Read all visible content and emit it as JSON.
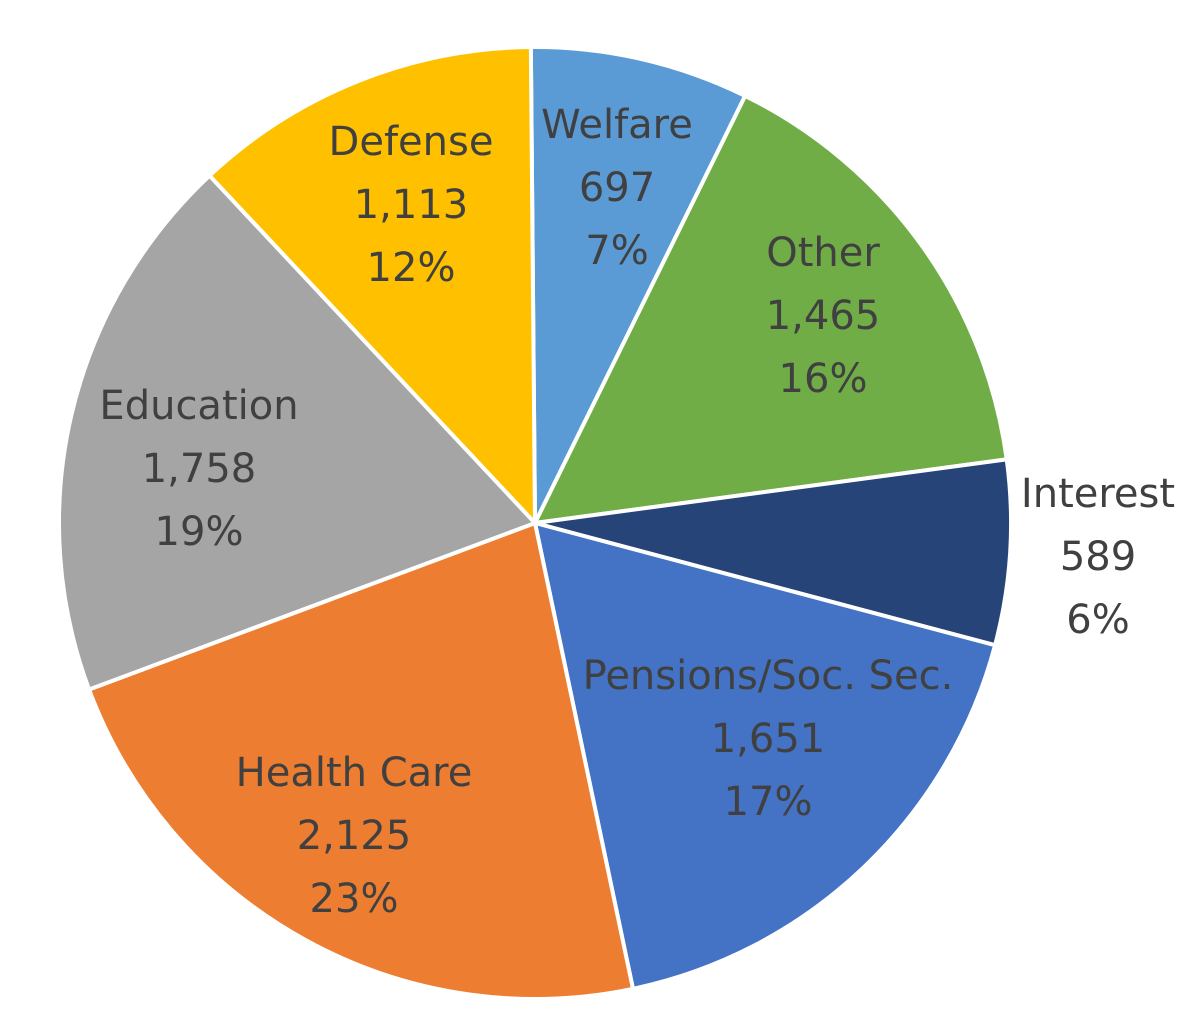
{
  "chart_data": {
    "type": "pie",
    "title": "",
    "slices": [
      {
        "label": "Welfare",
        "value": 697,
        "value_text": "697",
        "percent_text": "7%",
        "color": "#5B9BD5"
      },
      {
        "label": "Other",
        "value": 1465,
        "value_text": "1,465",
        "percent_text": "16%",
        "color": "#70AD47"
      },
      {
        "label": "Interest",
        "value": 589,
        "value_text": "589",
        "percent_text": "6%",
        "color": "#264478"
      },
      {
        "label": "Pensions/Soc. Sec.",
        "value": 1651,
        "value_text": "1,651",
        "percent_text": "17%",
        "color": "#4472C4"
      },
      {
        "label": "Health Care",
        "value": 2125,
        "value_text": "2,125",
        "percent_text": "23%",
        "color": "#ED7D31"
      },
      {
        "label": "Education",
        "value": 1758,
        "value_text": "1,758",
        "percent_text": "19%",
        "color": "#A5A5A5"
      },
      {
        "label": "Defense",
        "value": 1113,
        "value_text": "1,113",
        "percent_text": "12%",
        "color": "#FFC000"
      }
    ],
    "label_color": "#404040"
  }
}
